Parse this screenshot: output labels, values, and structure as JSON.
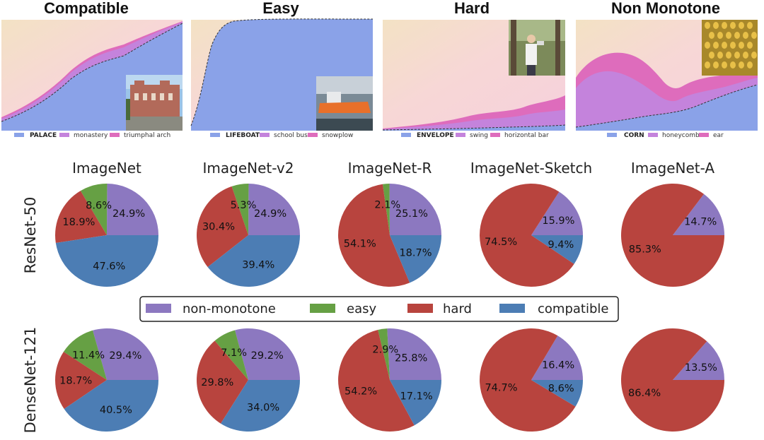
{
  "colors": {
    "non_monotone": "#8c78c0",
    "easy": "#66a044",
    "hard": "#b8443e",
    "compatible": "#4c7db4",
    "bg_pink": "#f7d8dc",
    "area_blue": "#8aa2e8",
    "area_purple": "#c483dc",
    "area_pink": "#de6cbc"
  },
  "top_panels": [
    {
      "title": "Compatible",
      "legend": [
        "PALACE",
        "monastery",
        "triumphal arch"
      ],
      "thumbnail": "palace-photo"
    },
    {
      "title": "Easy",
      "legend": [
        "LIFEBOAT",
        "school bus",
        "snowplow"
      ],
      "thumbnail": "lifeboat-photo"
    },
    {
      "title": "Hard",
      "legend": [
        "ENVELOPE",
        "swing",
        "horizontal bar"
      ],
      "thumbnail": "person-photo"
    },
    {
      "title": "Non Monotone",
      "legend": [
        "CORN",
        "honeycomb",
        "ear"
      ],
      "thumbnail": "corn-photo"
    }
  ],
  "legend": {
    "items": [
      "non-monotone",
      "easy",
      "hard",
      "compatible"
    ]
  },
  "chart_data": {
    "type": "pie",
    "datasets": [
      "ImageNet",
      "ImageNet-v2",
      "ImageNet-R",
      "ImageNet-Sketch",
      "ImageNet-A"
    ],
    "models": [
      "ResNet-50",
      "DenseNet-121"
    ],
    "categories": [
      "non-monotone",
      "easy",
      "hard",
      "compatible"
    ],
    "pies": [
      {
        "model": "ResNet-50",
        "dataset": "ImageNet",
        "values": [
          24.9,
          8.6,
          18.9,
          47.6
        ],
        "labels": [
          "24.9%",
          "8.6%",
          "18.9%",
          "47.6%"
        ]
      },
      {
        "model": "ResNet-50",
        "dataset": "ImageNet-v2",
        "values": [
          24.9,
          5.3,
          30.4,
          39.4
        ],
        "labels": [
          "24.9%",
          "5.3%",
          "30.4%",
          "39.4%"
        ]
      },
      {
        "model": "ResNet-50",
        "dataset": "ImageNet-R",
        "values": [
          25.1,
          2.1,
          54.1,
          18.7
        ],
        "labels": [
          "25.1%",
          "2.1%",
          "54.1%",
          "18.7%"
        ]
      },
      {
        "model": "ResNet-50",
        "dataset": "ImageNet-Sketch",
        "values": [
          15.9,
          0,
          74.5,
          9.4
        ],
        "labels": [
          "15.9%",
          "",
          "74.5%",
          "9.4%"
        ]
      },
      {
        "model": "ResNet-50",
        "dataset": "ImageNet-A",
        "values": [
          14.7,
          0,
          85.3,
          0
        ],
        "labels": [
          "14.7%",
          "",
          "85.3%",
          ""
        ]
      },
      {
        "model": "DenseNet-121",
        "dataset": "ImageNet",
        "values": [
          29.4,
          11.4,
          18.7,
          40.5
        ],
        "labels": [
          "29.4%",
          "11.4%",
          "18.7%",
          "40.5%"
        ]
      },
      {
        "model": "DenseNet-121",
        "dataset": "ImageNet-v2",
        "values": [
          29.2,
          7.1,
          29.8,
          34.0
        ],
        "labels": [
          "29.2%",
          "7.1%",
          "29.8%",
          "34.0%"
        ]
      },
      {
        "model": "DenseNet-121",
        "dataset": "ImageNet-R",
        "values": [
          25.8,
          2.9,
          54.2,
          17.1
        ],
        "labels": [
          "25.8%",
          "2.9%",
          "54.2%",
          "17.1%"
        ]
      },
      {
        "model": "DenseNet-121",
        "dataset": "ImageNet-Sketch",
        "values": [
          16.4,
          0,
          74.7,
          8.6
        ],
        "labels": [
          "16.4%",
          "",
          "74.7%",
          "8.6%"
        ]
      },
      {
        "model": "DenseNet-121",
        "dataset": "ImageNet-A",
        "values": [
          13.5,
          0,
          86.4,
          0
        ],
        "labels": [
          "13.5%",
          "",
          "86.4%",
          ""
        ]
      }
    ]
  }
}
